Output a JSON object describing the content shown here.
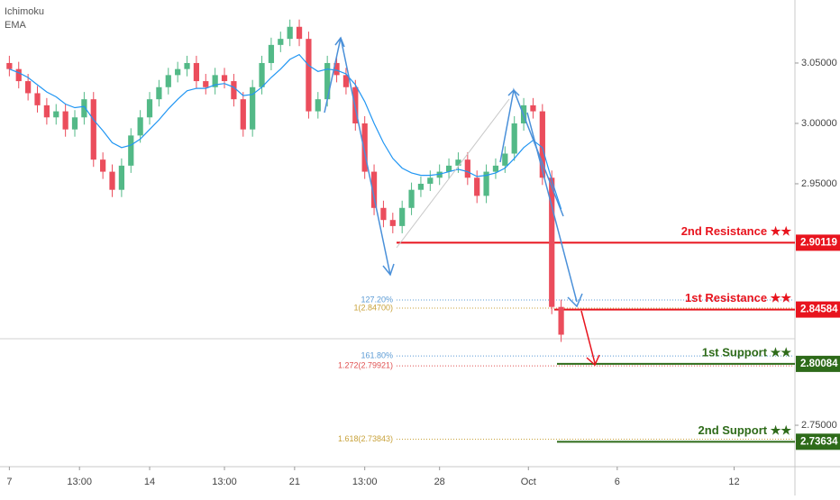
{
  "chart_data": {
    "type": "candlestick",
    "indicators": [
      "Ichimoku",
      "EMA"
    ],
    "x": [
      0,
      2,
      4,
      6,
      8,
      10,
      12,
      14,
      16,
      18,
      20,
      22,
      24,
      26,
      28,
      30,
      32,
      34,
      36,
      38,
      40,
      42,
      44,
      46,
      48,
      50,
      52,
      54,
      56,
      58,
      60,
      62,
      64,
      66,
      68,
      70,
      72,
      74,
      76,
      78,
      80,
      82,
      84,
      86,
      88,
      90,
      92,
      94,
      96,
      98,
      100,
      102,
      104,
      106,
      108,
      110,
      112,
      114,
      116,
      118
    ],
    "open": [
      3.05,
      3.045,
      3.035,
      3.025,
      3.015,
      3.005,
      3.01,
      2.995,
      3.005,
      3.02,
      2.97,
      2.96,
      2.945,
      2.965,
      2.99,
      3.005,
      3.02,
      3.03,
      3.04,
      3.045,
      3.05,
      3.035,
      3.03,
      3.04,
      3.035,
      3.02,
      2.995,
      3.03,
      3.05,
      3.065,
      3.07,
      3.08,
      3.07,
      3.01,
      3.02,
      3.05,
      3.04,
      3.03,
      3.0,
      2.96,
      2.93,
      2.92,
      2.915,
      2.93,
      2.945,
      2.95,
      2.955,
      2.96,
      2.965,
      2.97,
      2.955,
      2.94,
      2.96,
      2.965,
      2.975,
      3.0,
      3.015,
      3.01,
      2.955,
      2.848
    ],
    "high": [
      3.056,
      3.051,
      3.041,
      3.031,
      3.021,
      3.016,
      3.016,
      3.011,
      3.026,
      3.026,
      2.976,
      2.966,
      2.971,
      2.996,
      3.011,
      3.026,
      3.036,
      3.046,
      3.051,
      3.056,
      3.056,
      3.041,
      3.046,
      3.046,
      3.041,
      3.026,
      3.036,
      3.056,
      3.071,
      3.076,
      3.086,
      3.086,
      3.076,
      3.026,
      3.056,
      3.056,
      3.046,
      3.036,
      3.006,
      2.966,
      2.936,
      2.926,
      2.936,
      2.951,
      2.956,
      2.961,
      2.966,
      2.971,
      2.976,
      2.976,
      2.961,
      2.966,
      2.971,
      2.981,
      3.006,
      3.021,
      3.021,
      3.016,
      2.961,
      2.854
    ],
    "low": [
      3.039,
      3.029,
      3.019,
      3.009,
      2.999,
      2.999,
      2.989,
      2.989,
      2.999,
      2.964,
      2.954,
      2.939,
      2.939,
      2.959,
      2.984,
      2.999,
      3.014,
      3.024,
      3.034,
      3.039,
      3.029,
      3.024,
      3.024,
      3.029,
      3.014,
      2.989,
      2.989,
      3.024,
      3.044,
      3.059,
      3.064,
      3.064,
      3.004,
      3.004,
      3.014,
      3.034,
      3.024,
      2.994,
      2.954,
      2.924,
      2.914,
      2.909,
      2.909,
      2.924,
      2.939,
      2.944,
      2.949,
      2.954,
      2.959,
      2.949,
      2.934,
      2.934,
      2.954,
      2.959,
      2.969,
      2.994,
      3.004,
      2.949,
      2.842,
      2.819
    ],
    "close": [
      3.045,
      3.035,
      3.025,
      3.015,
      3.005,
      3.01,
      2.995,
      3.005,
      3.02,
      2.97,
      2.96,
      2.945,
      2.965,
      2.99,
      3.005,
      3.02,
      3.03,
      3.04,
      3.045,
      3.05,
      3.035,
      3.03,
      3.04,
      3.035,
      3.02,
      2.995,
      3.03,
      3.05,
      3.065,
      3.07,
      3.08,
      3.07,
      3.01,
      3.02,
      3.05,
      3.04,
      3.03,
      3.0,
      2.96,
      2.93,
      2.92,
      2.915,
      2.93,
      2.945,
      2.95,
      2.955,
      2.96,
      2.965,
      2.97,
      2.955,
      2.94,
      2.96,
      2.965,
      2.975,
      3.0,
      3.015,
      3.01,
      2.955,
      2.848,
      2.825
    ],
    "ema": {
      "name": "EMA",
      "color": "#2196f3",
      "values": [
        3.045,
        3.042,
        3.038,
        3.032,
        3.026,
        3.022,
        3.016,
        3.013,
        3.014,
        3.003,
        2.994,
        2.984,
        2.98,
        2.982,
        2.987,
        2.995,
        3.003,
        3.012,
        3.02,
        3.027,
        3.029,
        3.029,
        3.032,
        3.033,
        3.03,
        3.023,
        3.024,
        3.03,
        3.038,
        3.045,
        3.053,
        3.057,
        3.048,
        3.043,
        3.045,
        3.044,
        3.041,
        3.032,
        3.018,
        3.0,
        2.984,
        2.971,
        2.963,
        2.959,
        2.957,
        2.957,
        2.958,
        2.96,
        2.962,
        2.96,
        2.956,
        2.957,
        2.959,
        2.963,
        2.971,
        2.98,
        2.986,
        2.98,
        2.953,
        2.929
      ]
    },
    "up_color": "#53b987",
    "down_color": "#eb4d5c",
    "levels": [
      {
        "name": "2nd Resistance ★★",
        "value": 2.90119,
        "color": "#e8141e"
      },
      {
        "name": "1st Resistance ★★",
        "value": 2.84584,
        "color": "#e8141e"
      },
      {
        "name": "1st Support ★★",
        "value": 2.80084,
        "color": "#2e6b1a"
      },
      {
        "name": "2nd Support ★★",
        "value": 2.73634,
        "color": "#2e6b1a"
      }
    ],
    "fib_levels": [
      {
        "label": "127.20%",
        "value": 2.8537,
        "color": "#5b9bd5"
      },
      {
        "label": "1(2.84700)",
        "value": 2.847,
        "color": "#c8a23a"
      },
      {
        "label": "161.80%",
        "value": 2.8074,
        "color": "#5b9bd5"
      },
      {
        "label": "1.272(2.79921)",
        "value": 2.79921,
        "color": "#e05050"
      },
      {
        "label": "1.618(2.73843)",
        "value": 2.73843,
        "color": "#c8a23a"
      }
    ],
    "xlim": [
      -2,
      168
    ],
    "xticks": [
      {
        "value": 0,
        "label": "7"
      },
      {
        "value": 15,
        "label": "13:00"
      },
      {
        "value": 30,
        "label": "14"
      },
      {
        "value": 46,
        "label": "13:00"
      },
      {
        "value": 61,
        "label": "21"
      },
      {
        "value": 76,
        "label": "13:00"
      },
      {
        "value": 92,
        "label": "28"
      },
      {
        "value": 111,
        "label": "Oct"
      },
      {
        "value": 130,
        "label": "6"
      },
      {
        "value": 155,
        "label": "12"
      }
    ],
    "ylim": [
      2.7157,
      3.1022
    ],
    "yticks": [
      {
        "value": 3.05,
        "label": "3.05000"
      },
      {
        "value": 3.0,
        "label": "3.00000"
      },
      {
        "value": 2.95,
        "label": "2.95000"
      },
      {
        "value": 2.75,
        "label": "2.75000"
      }
    ]
  }
}
